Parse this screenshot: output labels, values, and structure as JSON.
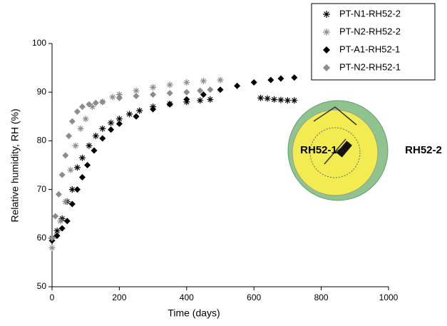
{
  "chart_data": {
    "type": "scatter",
    "x_label": "Time (days)",
    "y_label": "Relative humidity, RH (%)",
    "xlim": [
      0,
      1000
    ],
    "xticks": [
      0,
      200,
      400,
      600,
      800,
      1000
    ],
    "ylim": [
      50,
      100
    ],
    "yticks": [
      50,
      60,
      70,
      80,
      90,
      100
    ],
    "legend": "top-right",
    "annotations": [
      "RH52-1",
      "RH52-2"
    ],
    "series": [
      {
        "name": "PT-N1-RH52-2",
        "color": "#000000",
        "marker": "asterisk",
        "x": [
          0,
          15,
          30,
          45,
          60,
          75,
          90,
          110,
          130,
          150,
          175,
          200,
          230,
          260,
          300,
          350,
          400,
          440,
          470,
          620,
          640,
          660,
          680,
          700,
          720
        ],
        "values": [
          60,
          61.5,
          64,
          67.5,
          70,
          74.5,
          76.5,
          79,
          81,
          82.5,
          83.7,
          84.5,
          85.5,
          86.2,
          87,
          87.6,
          88,
          88.3,
          88.5,
          88.8,
          88.7,
          88.5,
          88.4,
          88.3,
          88.3
        ]
      },
      {
        "name": "PT-N2-RH52-2",
        "color": "#8c8c8c",
        "marker": "asterisk",
        "x": [
          0,
          12,
          25,
          40,
          55,
          70,
          85,
          100,
          120,
          150,
          180,
          200,
          250,
          300,
          350,
          400,
          450,
          500
        ],
        "values": [
          58,
          60.5,
          63.5,
          67.5,
          74,
          79,
          82.5,
          84.5,
          87,
          88,
          89,
          89.5,
          90.3,
          91,
          91.5,
          92,
          92.3,
          92.5
        ]
      },
      {
        "name": "PT-A1-RH52-1",
        "color": "#000000",
        "marker": "diamond",
        "x": [
          0,
          15,
          30,
          45,
          60,
          75,
          90,
          105,
          125,
          150,
          175,
          200,
          250,
          300,
          350,
          400,
          450,
          500,
          550,
          600,
          650,
          680,
          720
        ],
        "values": [
          59.5,
          60.5,
          62,
          63.5,
          67,
          70,
          72.5,
          75,
          78,
          80.5,
          82.3,
          83.5,
          85,
          86.5,
          87.5,
          88.5,
          89.5,
          90.5,
          91.3,
          92,
          92.5,
          92.8,
          93
        ]
      },
      {
        "name": "PT-N2-RH52-1",
        "color": "#8c8c8c",
        "marker": "diamond",
        "x": [
          0,
          10,
          20,
          30,
          40,
          50,
          60,
          75,
          90,
          110,
          130,
          150,
          200,
          250,
          300,
          350,
          400,
          440,
          470
        ],
        "values": [
          60,
          64.5,
          69,
          73,
          77,
          81,
          84,
          86,
          87,
          87.5,
          87.8,
          88,
          88.8,
          89.2,
          89.5,
          89.8,
          90,
          90.3,
          90.5
        ]
      }
    ]
  }
}
